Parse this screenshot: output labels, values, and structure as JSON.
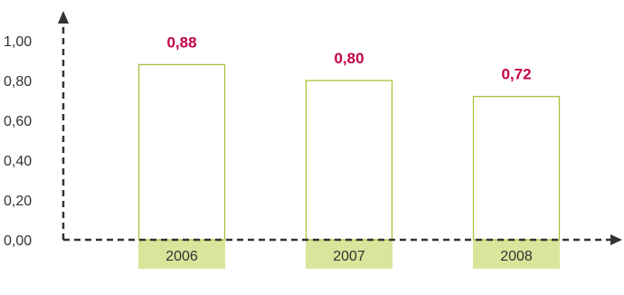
{
  "chart_data": {
    "type": "bar",
    "categories": [
      "2006",
      "2007",
      "2008"
    ],
    "values": [
      0.88,
      0.8,
      0.72
    ],
    "data_labels": [
      "0,88",
      "0,80",
      "0,72"
    ],
    "y_ticks": [
      "0,00",
      "0,20",
      "0,40",
      "0,60",
      "0,80",
      "1,00"
    ],
    "ylim": [
      0,
      1
    ],
    "title": "",
    "xlabel": "",
    "ylabel": "",
    "grid": false,
    "legend": "none",
    "colors": {
      "bar_outline": "#a8c23a",
      "category_band": "#d9e59a",
      "data_label": "#c4004a",
      "axis": "#333333"
    }
  }
}
